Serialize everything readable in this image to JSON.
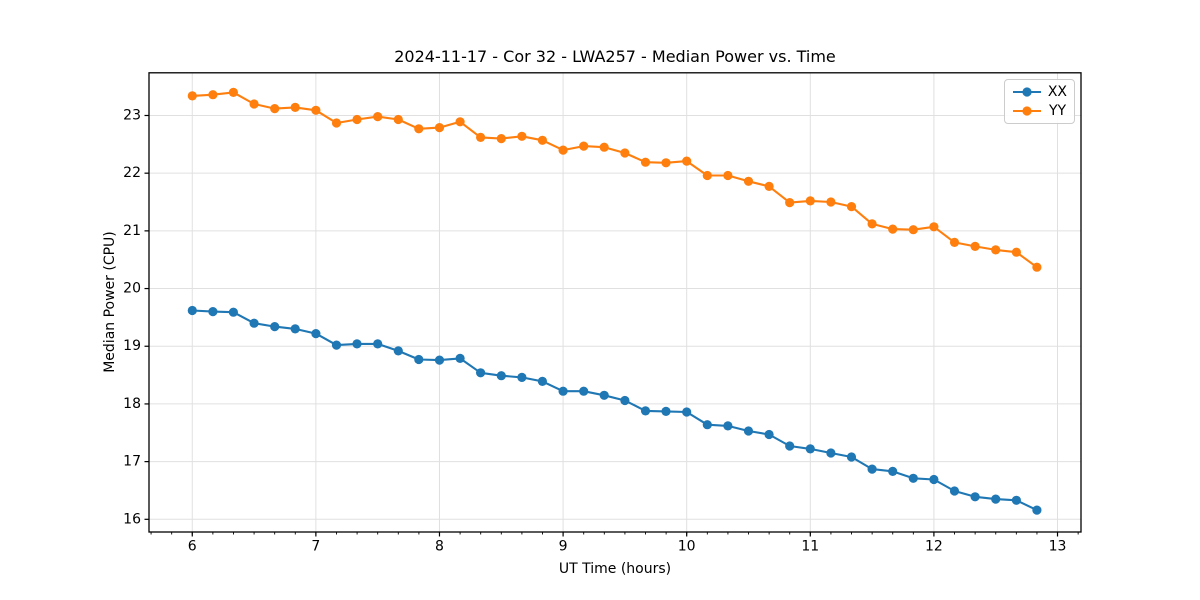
{
  "figure": {
    "background": "#ffffff",
    "axis_color": "#000000",
    "grid_color": "#e0e0e0"
  },
  "chart_data": {
    "type": "line",
    "title": "2024-11-17 - Cor 32 - LWA257 - Median Power vs. Time",
    "xlabel": "UT Time (hours)",
    "ylabel": "Median Power (CPU)",
    "xlim": [
      5.65,
      13.19
    ],
    "ylim": [
      15.78,
      23.74
    ],
    "xticks": [
      6,
      7,
      8,
      9,
      10,
      11,
      12,
      13
    ],
    "yticks": [
      16,
      17,
      18,
      19,
      20,
      21,
      22,
      23
    ],
    "x_minor_step": 0.16667,
    "grid": true,
    "legend_position": "upper right",
    "marker": "circle",
    "x": [
      6.0,
      6.167,
      6.333,
      6.5,
      6.667,
      6.833,
      7.0,
      7.167,
      7.333,
      7.5,
      7.667,
      7.833,
      8.0,
      8.167,
      8.333,
      8.5,
      8.667,
      8.833,
      9.0,
      9.167,
      9.333,
      9.5,
      9.667,
      9.833,
      10.0,
      10.167,
      10.333,
      10.5,
      10.667,
      10.833,
      11.0,
      11.167,
      11.333,
      11.5,
      11.667,
      11.833,
      12.0,
      12.167,
      12.333,
      12.5,
      12.667,
      12.833
    ],
    "series": [
      {
        "name": "XX",
        "color": "#1f77b4",
        "values": [
          19.62,
          19.6,
          19.59,
          19.4,
          19.34,
          19.3,
          19.22,
          19.02,
          19.04,
          19.04,
          18.92,
          18.77,
          18.76,
          18.79,
          18.54,
          18.49,
          18.46,
          18.39,
          18.22,
          18.22,
          18.15,
          18.06,
          17.88,
          17.87,
          17.86,
          17.64,
          17.62,
          17.53,
          17.47,
          17.27,
          17.22,
          17.15,
          17.08,
          16.87,
          16.83,
          16.71,
          16.69,
          16.49,
          16.39,
          16.35,
          16.33,
          16.16
        ]
      },
      {
        "name": "YY",
        "color": "#ff7f0e",
        "values": [
          23.34,
          23.36,
          23.4,
          23.2,
          23.12,
          23.14,
          23.09,
          22.87,
          22.93,
          22.98,
          22.93,
          22.77,
          22.79,
          22.89,
          22.62,
          22.6,
          22.64,
          22.57,
          22.4,
          22.47,
          22.45,
          22.35,
          22.19,
          22.18,
          22.21,
          21.96,
          21.96,
          21.86,
          21.77,
          21.49,
          21.52,
          21.5,
          21.42,
          21.12,
          21.03,
          21.02,
          21.07,
          20.8,
          20.73,
          20.67,
          20.63,
          20.37
        ]
      }
    ]
  }
}
